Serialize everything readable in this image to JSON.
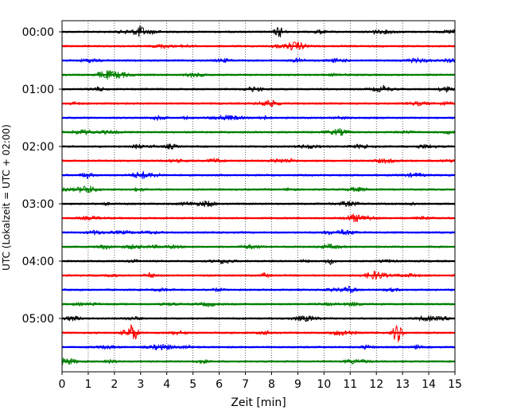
{
  "chart_data": {
    "type": "line",
    "subtype": "helicorder",
    "title": "",
    "xlabel": "Zeit  [min]",
    "ylabel": "UTC (Lokalzeit = UTC + 02:00)",
    "xlim": [
      0,
      15
    ],
    "x_ticks": [
      "0",
      "1",
      "2",
      "3",
      "4",
      "5",
      "6",
      "7",
      "8",
      "9",
      "10",
      "11",
      "12",
      "13",
      "14",
      "15"
    ],
    "y_tick_labels": [
      "00:00",
      "01:00",
      "02:00",
      "03:00",
      "04:00",
      "05:00"
    ],
    "grid": "vertical dotted at each minute",
    "trace_interval_minutes": 15,
    "trace_count": 24,
    "trace_colors": [
      "#000000",
      "#ff0000",
      "#0000ff",
      "#008000"
    ],
    "notable_events": [
      {
        "trace": "00:00",
        "minute": 3.0,
        "amplitude": "medium"
      },
      {
        "trace": "00:00",
        "minute": 8.3,
        "amplitude": "medium"
      },
      {
        "trace": "05:15",
        "minute": 2.7,
        "amplitude": "large"
      },
      {
        "trace": "05:15",
        "minute": 12.8,
        "amplitude": "large"
      }
    ]
  }
}
